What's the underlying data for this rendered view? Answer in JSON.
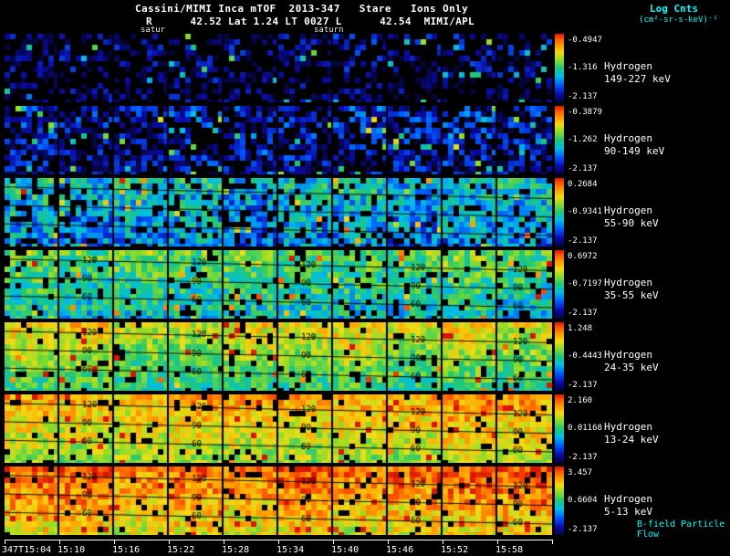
{
  "header": {
    "title": "Cassini/MIMI Inca mTOF  2013-347   Stare   Ions Only",
    "subtitle": "R      42.52 Lat 1.24 LT 0027 L      42.54  MIMI/APL",
    "marker_left": "satur",
    "marker_right": "saturn",
    "colorbar_title_line1": "Log Cnts",
    "colorbar_title_line2": "(cm²-sr-s-keV)⁻¹"
  },
  "footer": {
    "bfield_label": "B-field Particle Flow"
  },
  "colors": {
    "background": "#000000",
    "annotation_cyan": "#00ffff",
    "text_white": "#ffffff"
  },
  "chart_data": {
    "type": "heatmap",
    "title": "Cassini/MIMI Inca mTOF 2013-347 Stare Ions Only",
    "x_ticks": [
      "347T15:04",
      "15:10",
      "15:16",
      "15:22",
      "15:28",
      "15:34",
      "15:40",
      "15:46",
      "15:52",
      "15:58"
    ],
    "n_time_panels": 10,
    "colorbar_scale_label": "Log Cnts (cm²-sr-s-keV)⁻¹",
    "pitch_angle_contour_labels": [
      "120",
      "90",
      "60"
    ],
    "rows": [
      {
        "species": "Hydrogen",
        "energy_range": "149-227 keV",
        "colorbar": {
          "top": "-0.4947",
          "mid": "-1.316",
          "bottom": "-2.137"
        },
        "render": {
          "seed": 11,
          "v_top": 0.11,
          "v_bottom": 0.05,
          "noise": 0.13,
          "black_frac": 0.58,
          "outlier": 0.05,
          "contours": false,
          "contour_labels": false
        }
      },
      {
        "species": "Hydrogen",
        "energy_range": "90-149 keV",
        "colorbar": {
          "top": "-0.3879",
          "mid": "-1.262",
          "bottom": "-2.137"
        },
        "render": {
          "seed": 22,
          "v_top": 0.18,
          "v_bottom": 0.1,
          "noise": 0.15,
          "black_frac": 0.38,
          "outlier": 0.07,
          "contours": false,
          "contour_labels": false
        }
      },
      {
        "species": "Hydrogen",
        "energy_range": "55-90 keV",
        "colorbar": {
          "top": "0.2684",
          "mid": "-0.9341",
          "bottom": "-2.137"
        },
        "render": {
          "seed": 33,
          "v_top": 0.42,
          "v_bottom": 0.28,
          "noise": 0.17,
          "black_frac": 0.17,
          "outlier": 0.03,
          "contours": true,
          "contour_labels": false
        }
      },
      {
        "species": "Hydrogen",
        "energy_range": "35-55 keV",
        "colorbar": {
          "top": "0.6972",
          "mid": "-0.7197",
          "bottom": "-2.137"
        },
        "render": {
          "seed": 44,
          "v_top": 0.56,
          "v_bottom": 0.4,
          "noise": 0.15,
          "black_frac": 0.11,
          "outlier": 0.03,
          "contours": true,
          "contour_labels": true
        }
      },
      {
        "species": "Hydrogen",
        "energy_range": "24-35 keV",
        "colorbar": {
          "top": "1.248",
          "mid": "-0.4443",
          "bottom": "-2.137"
        },
        "render": {
          "seed": 55,
          "v_top": 0.72,
          "v_bottom": 0.48,
          "noise": 0.12,
          "black_frac": 0.08,
          "outlier": 0.03,
          "contours": true,
          "contour_labels": true
        }
      },
      {
        "species": "Hydrogen",
        "energy_range": "13-24 keV",
        "colorbar": {
          "top": "2.160",
          "mid": "0.01168",
          "bottom": "-2.137"
        },
        "render": {
          "seed": 66,
          "v_top": 0.83,
          "v_bottom": 0.62,
          "noise": 0.12,
          "black_frac": 0.06,
          "outlier": 0.04,
          "contours": true,
          "contour_labels": true
        }
      },
      {
        "species": "Hydrogen",
        "energy_range": "5-13 keV",
        "colorbar": {
          "top": "3.457",
          "mid": "0.6604",
          "bottom": "-2.137"
        },
        "render": {
          "seed": 77,
          "v_top": 0.9,
          "v_bottom": 0.7,
          "noise": 0.13,
          "black_frac": 0.06,
          "outlier": 0.04,
          "contours": true,
          "contour_labels": true
        }
      }
    ]
  }
}
